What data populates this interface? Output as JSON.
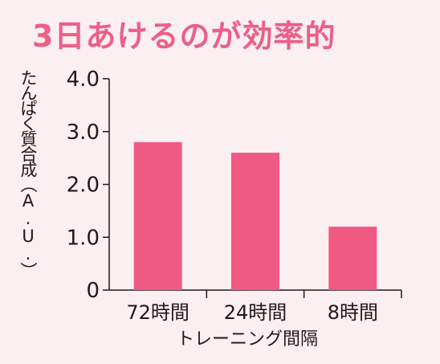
{
  "chart_data": {
    "type": "bar",
    "title": "3日あけるのが効率的",
    "ylabel": "たんぱく質合成（A.U.）",
    "xlabel": "トレーニング間隔",
    "categories": [
      "72時間",
      "24時間",
      "8時間"
    ],
    "values": [
      2.8,
      2.6,
      1.2
    ],
    "yticks": [
      "0",
      "1.0",
      "2.0",
      "3.0",
      "4.0"
    ],
    "ylim": [
      0,
      4.0
    ],
    "grid": false,
    "colors": {
      "bar": "#f05a82",
      "title": "#ec5f86",
      "axis": "#231815",
      "background": "#fbeff2"
    }
  }
}
